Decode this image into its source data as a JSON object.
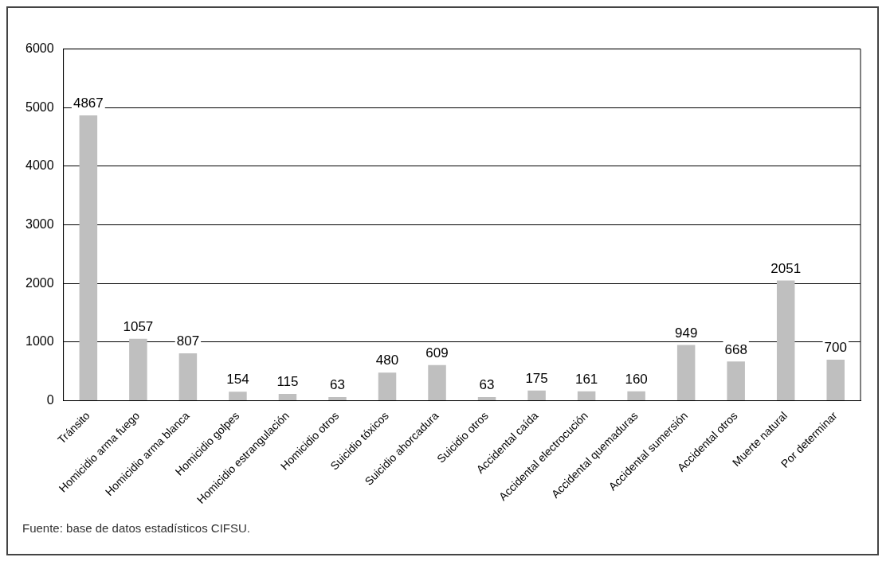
{
  "chart_data": {
    "type": "bar",
    "categories": [
      "Tránsito",
      "Homicidio arma fuego",
      "Homicidio arma blanca",
      "Homicidio golpes",
      "Homicidio estrangulación",
      "Homicidio otros",
      "Suicidio tóxicos",
      "Suicidio ahorcadura",
      "Suicidio otros",
      "Accidental caída",
      "Accidental electrocución",
      "Accidental quemaduras",
      "Accidental sumersión",
      "Accidental otros",
      "Muerte natural",
      "Por determinar"
    ],
    "values": [
      4867,
      1057,
      807,
      154,
      115,
      63,
      480,
      609,
      63,
      175,
      161,
      160,
      949,
      668,
      2051,
      700
    ],
    "color": "#bfbfbf",
    "ylim": [
      0,
      6000
    ],
    "yticks": [
      0,
      1000,
      2000,
      3000,
      4000,
      5000,
      6000
    ],
    "grid": "y",
    "legend": false,
    "data_labels": true,
    "annotations": [
      "Fuente: base de datos estadísticos CIFSU."
    ]
  }
}
